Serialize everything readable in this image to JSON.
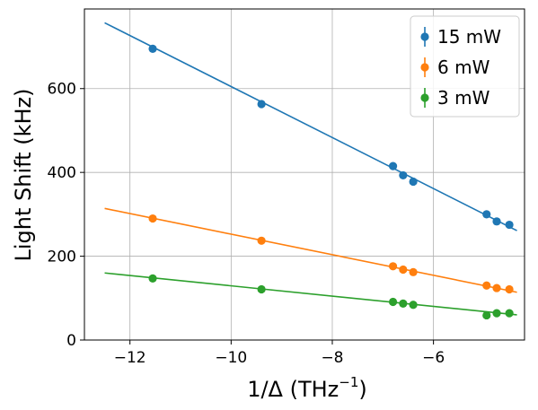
{
  "chart_data": {
    "type": "scatter",
    "xlabel_main": "1/Δ (THz",
    "xlabel_sup": "−1",
    "xlabel_end": ")",
    "ylabel": "Light Shift (kHz)",
    "xlim": [
      -12.9,
      -4.2
    ],
    "ylim": [
      0,
      790
    ],
    "xticks": [
      -12,
      -10,
      -8,
      -6
    ],
    "xtick_labels": [
      "−12",
      "−10",
      "−8",
      "−6"
    ],
    "yticks": [
      0,
      200,
      400,
      600
    ],
    "ytick_labels": [
      "0",
      "200",
      "400",
      "600"
    ],
    "grid": true,
    "legend_position": "top-right",
    "series": [
      {
        "name": "15 mW",
        "color": "#1f77b4",
        "x": [
          -11.55,
          -9.4,
          -6.8,
          -6.6,
          -6.4,
          -4.95,
          -4.75,
          -4.5
        ],
        "y": [
          695,
          563,
          415,
          393,
          378,
          300,
          283,
          275
        ],
        "fit": {
          "x": [
            -12.5,
            -4.35
          ],
          "y": [
            757,
            261
          ]
        }
      },
      {
        "name": "6 mW",
        "color": "#ff7f0e",
        "x": [
          -11.55,
          -9.4,
          -6.8,
          -6.6,
          -6.4,
          -4.95,
          -4.75,
          -4.5
        ],
        "y": [
          290,
          237,
          176,
          168,
          162,
          130,
          124,
          121
        ],
        "fit": {
          "x": [
            -12.5,
            -4.35
          ],
          "y": [
            314,
            114
          ]
        }
      },
      {
        "name": "3 mW",
        "color": "#2ca02c",
        "x": [
          -11.55,
          -9.4,
          -6.8,
          -6.6,
          -6.4,
          -4.95,
          -4.75,
          -4.5
        ],
        "y": [
          147,
          121,
          91,
          87,
          84,
          59,
          64,
          64
        ],
        "fit": {
          "x": [
            -12.5,
            -4.35
          ],
          "y": [
            160,
            60
          ]
        }
      }
    ]
  }
}
